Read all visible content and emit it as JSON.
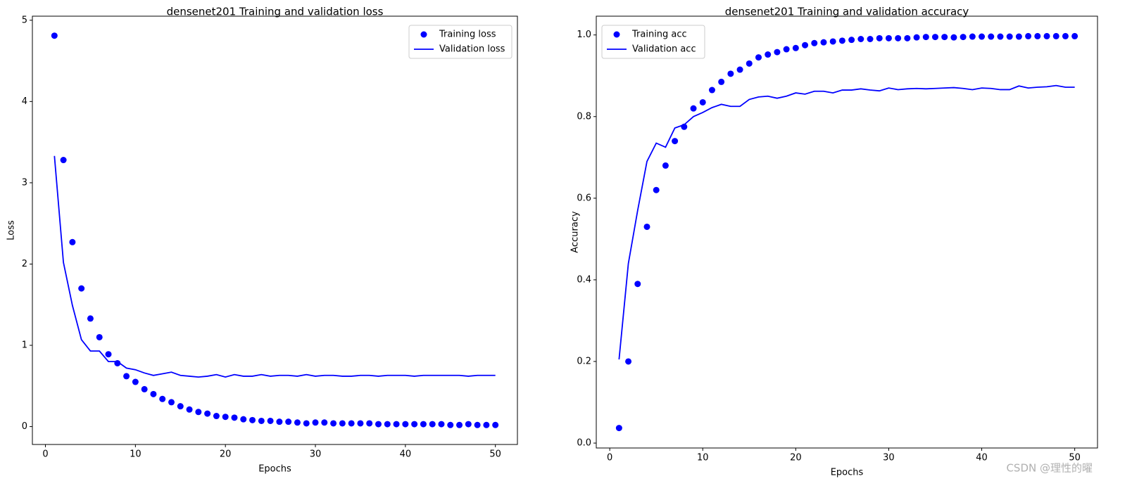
{
  "chart_data": [
    {
      "type": "line",
      "title": "densenet201 Training and validation loss",
      "xlabel": "Epochs",
      "ylabel": "Loss",
      "x": [
        1,
        2,
        3,
        4,
        5,
        6,
        7,
        8,
        9,
        10,
        11,
        12,
        13,
        14,
        15,
        16,
        17,
        18,
        19,
        20,
        21,
        22,
        23,
        24,
        25,
        26,
        27,
        28,
        29,
        30,
        31,
        32,
        33,
        34,
        35,
        36,
        37,
        38,
        39,
        40,
        41,
        42,
        43,
        44,
        45,
        46,
        47,
        48,
        49,
        50
      ],
      "xlim": [
        -1.45,
        52.45
      ],
      "xticks": [
        0,
        10,
        20,
        30,
        40,
        50
      ],
      "ylim": [
        -0.22,
        5.05
      ],
      "yticks": [
        0,
        1,
        2,
        3,
        4,
        5
      ],
      "legend": "upper right",
      "series": [
        {
          "name": "Training loss",
          "color": "#0000ff",
          "style": "markers",
          "values": [
            4.81,
            3.28,
            2.27,
            1.7,
            1.33,
            1.1,
            0.89,
            0.78,
            0.62,
            0.55,
            0.46,
            0.4,
            0.34,
            0.3,
            0.25,
            0.21,
            0.18,
            0.16,
            0.13,
            0.12,
            0.11,
            0.09,
            0.08,
            0.07,
            0.07,
            0.06,
            0.06,
            0.05,
            0.04,
            0.05,
            0.05,
            0.04,
            0.04,
            0.04,
            0.04,
            0.04,
            0.03,
            0.03,
            0.03,
            0.03,
            0.03,
            0.03,
            0.03,
            0.03,
            0.02,
            0.02,
            0.03,
            0.02,
            0.02,
            0.02
          ]
        },
        {
          "name": "Validation loss",
          "color": "#0000ff",
          "style": "line",
          "values": [
            3.33,
            2.02,
            1.49,
            1.07,
            0.93,
            0.93,
            0.8,
            0.8,
            0.72,
            0.7,
            0.66,
            0.63,
            0.65,
            0.67,
            0.63,
            0.62,
            0.61,
            0.62,
            0.64,
            0.61,
            0.64,
            0.62,
            0.62,
            0.64,
            0.62,
            0.63,
            0.63,
            0.62,
            0.64,
            0.62,
            0.63,
            0.63,
            0.62,
            0.62,
            0.63,
            0.63,
            0.62,
            0.63,
            0.63,
            0.63,
            0.62,
            0.63,
            0.63,
            0.63,
            0.63,
            0.63,
            0.62,
            0.63,
            0.63,
            0.63
          ]
        }
      ]
    },
    {
      "type": "line",
      "title": "densenet201 Training and validation accuracy",
      "xlabel": "Epochs",
      "ylabel": "Accuracy",
      "x": [
        1,
        2,
        3,
        4,
        5,
        6,
        7,
        8,
        9,
        10,
        11,
        12,
        13,
        14,
        15,
        16,
        17,
        18,
        19,
        20,
        21,
        22,
        23,
        24,
        25,
        26,
        27,
        28,
        29,
        30,
        31,
        32,
        33,
        34,
        35,
        36,
        37,
        38,
        39,
        40,
        41,
        42,
        43,
        44,
        45,
        46,
        47,
        48,
        49,
        50
      ],
      "xlim": [
        -1.45,
        52.45
      ],
      "xticks": [
        0,
        10,
        20,
        30,
        40,
        50
      ],
      "ylim": [
        -0.012,
        1.046
      ],
      "yticks": [
        {
          "value": 0,
          "label": "0.0"
        },
        0.2,
        0.4,
        0.6,
        0.8,
        {
          "value": 1,
          "label": "1.0"
        }
      ],
      "legend": "upper left",
      "series": [
        {
          "name": "Training acc",
          "color": "#0000ff",
          "style": "markers",
          "values": [
            0.037,
            0.2,
            0.39,
            0.53,
            0.62,
            0.68,
            0.74,
            0.775,
            0.82,
            0.835,
            0.865,
            0.885,
            0.905,
            0.915,
            0.93,
            0.945,
            0.952,
            0.958,
            0.965,
            0.968,
            0.975,
            0.98,
            0.982,
            0.984,
            0.986,
            0.988,
            0.99,
            0.99,
            0.992,
            0.992,
            0.992,
            0.992,
            0.994,
            0.995,
            0.995,
            0.995,
            0.994,
            0.995,
            0.996,
            0.996,
            0.996,
            0.996,
            0.996,
            0.996,
            0.997,
            0.997,
            0.997,
            0.997,
            0.997,
            0.997
          ]
        },
        {
          "name": "Validation acc",
          "color": "#0000ff",
          "style": "line",
          "values": [
            0.205,
            0.44,
            0.57,
            0.69,
            0.735,
            0.725,
            0.772,
            0.78,
            0.8,
            0.81,
            0.822,
            0.83,
            0.825,
            0.825,
            0.842,
            0.848,
            0.85,
            0.845,
            0.85,
            0.858,
            0.855,
            0.862,
            0.862,
            0.858,
            0.865,
            0.865,
            0.868,
            0.865,
            0.863,
            0.87,
            0.866,
            0.868,
            0.869,
            0.868,
            0.869,
            0.87,
            0.871,
            0.869,
            0.866,
            0.87,
            0.869,
            0.866,
            0.866,
            0.875,
            0.87,
            0.872,
            0.873,
            0.876,
            0.872,
            0.872
          ]
        }
      ]
    }
  ],
  "watermark": "CSDN @理性的曜"
}
